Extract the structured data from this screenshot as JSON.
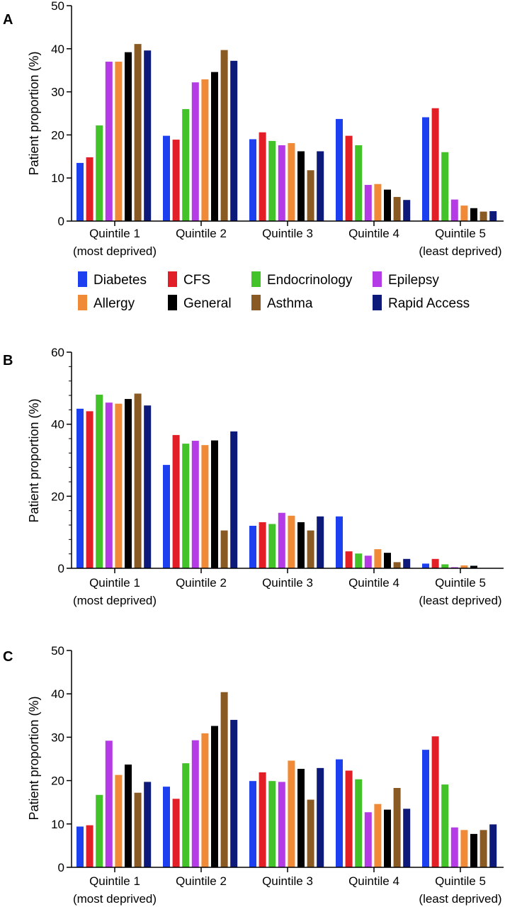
{
  "colors": {
    "Diabetes": "#1c3ff0",
    "CFS": "#e21e26",
    "Endocrinology": "#44c229",
    "Epilepsy": "#b53be6",
    "Allergy": "#f08a36",
    "General": "#000000",
    "Asthma": "#8a5a25",
    "Rapid Access": "#0d1a7a"
  },
  "legend": {
    "items": [
      "Diabetes",
      "CFS",
      "Endocrinology",
      "Epilepsy",
      "Allergy",
      "General",
      "Asthma",
      "Rapid Access"
    ]
  },
  "chart_data": [
    {
      "panel": "A",
      "type": "bar",
      "ylabel": "Patient proportion (%)",
      "ylim": [
        0,
        50
      ],
      "yticks": [
        0,
        10,
        20,
        30,
        40,
        50
      ],
      "categories": [
        [
          "Quintile 1",
          "(most deprived)"
        ],
        [
          "Quintile 2"
        ],
        [
          "Quintile 3"
        ],
        [
          "Quintile 4"
        ],
        [
          "Quintile 5",
          "(least deprived)"
        ]
      ],
      "series": [
        {
          "name": "Diabetes",
          "values": [
            13.5,
            19.8,
            19.0,
            23.7,
            24.1
          ]
        },
        {
          "name": "CFS",
          "values": [
            14.8,
            18.9,
            20.6,
            19.8,
            26.2
          ]
        },
        {
          "name": "Endocrinology",
          "values": [
            22.2,
            26.0,
            18.6,
            17.6,
            16.0
          ]
        },
        {
          "name": "Epilepsy",
          "values": [
            37.0,
            32.2,
            17.6,
            8.4,
            5.0
          ]
        },
        {
          "name": "Allergy",
          "values": [
            37.0,
            32.9,
            18.1,
            8.6,
            3.6
          ]
        },
        {
          "name": "General",
          "values": [
            39.2,
            34.6,
            16.2,
            7.3,
            3.0
          ]
        },
        {
          "name": "Asthma",
          "values": [
            41.1,
            39.7,
            11.8,
            5.6,
            2.2
          ]
        },
        {
          "name": "Rapid Access",
          "values": [
            39.6,
            37.2,
            16.2,
            4.9,
            2.3
          ]
        }
      ]
    },
    {
      "panel": "B",
      "type": "bar",
      "ylabel": "Patient proportion (%)",
      "ylim": [
        0,
        60
      ],
      "yticks": [
        0,
        20,
        40,
        60
      ],
      "categories": [
        [
          "Quintile 1",
          "(most deprived)"
        ],
        [
          "Quintile 2"
        ],
        [
          "Quintile 3"
        ],
        [
          "Quintile 4"
        ],
        [
          "Quintile 5",
          "(least deprived)"
        ]
      ],
      "series": [
        {
          "name": "Diabetes",
          "values": [
            44.3,
            28.7,
            11.8,
            14.4,
            1.3
          ]
        },
        {
          "name": "CFS",
          "values": [
            43.6,
            37.0,
            12.8,
            4.7,
            2.6
          ]
        },
        {
          "name": "Endocrinology",
          "values": [
            48.2,
            34.6,
            12.3,
            4.1,
            1.1
          ]
        },
        {
          "name": "Epilepsy",
          "values": [
            46.0,
            35.4,
            15.4,
            3.5,
            0.3
          ]
        },
        {
          "name": "Allergy",
          "values": [
            45.7,
            34.2,
            14.6,
            5.3,
            0.8
          ]
        },
        {
          "name": "General",
          "values": [
            47.0,
            35.5,
            12.8,
            4.3,
            0.7
          ]
        },
        {
          "name": "Asthma",
          "values": [
            48.5,
            10.5,
            10.5,
            1.7,
            0.0
          ]
        },
        {
          "name": "Rapid Access",
          "values": [
            45.2,
            38.0,
            14.4,
            2.6,
            0.1
          ]
        }
      ]
    },
    {
      "panel": "C",
      "type": "bar",
      "ylabel": "Patient proportion (%)",
      "ylim": [
        0,
        50
      ],
      "yticks": [
        0,
        10,
        20,
        30,
        40,
        50
      ],
      "categories": [
        [
          "Quintile 1",
          "(most deprived)"
        ],
        [
          "Quintile 2"
        ],
        [
          "Quintile 3"
        ],
        [
          "Quintile 4"
        ],
        [
          "Quintile 5",
          "(least deprived)"
        ]
      ],
      "series": [
        {
          "name": "Diabetes",
          "values": [
            9.4,
            18.6,
            19.9,
            24.9,
            27.1
          ]
        },
        {
          "name": "CFS",
          "values": [
            9.7,
            15.8,
            21.9,
            22.3,
            30.2
          ]
        },
        {
          "name": "Endocrinology",
          "values": [
            16.7,
            24.0,
            19.9,
            20.3,
            19.1
          ]
        },
        {
          "name": "Epilepsy",
          "values": [
            29.2,
            29.3,
            19.7,
            12.7,
            9.2
          ]
        },
        {
          "name": "Allergy",
          "values": [
            21.3,
            30.9,
            24.6,
            14.6,
            8.6
          ]
        },
        {
          "name": "General",
          "values": [
            23.7,
            32.6,
            22.7,
            13.3,
            7.7
          ]
        },
        {
          "name": "Asthma",
          "values": [
            17.2,
            40.4,
            15.6,
            18.3,
            8.6
          ]
        },
        {
          "name": "Rapid Access",
          "values": [
            19.7,
            34.0,
            22.9,
            13.5,
            9.9
          ]
        }
      ]
    }
  ]
}
